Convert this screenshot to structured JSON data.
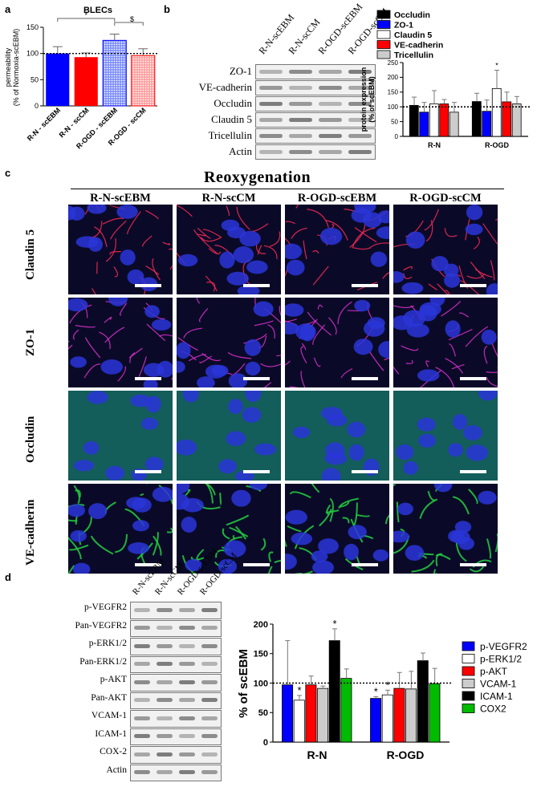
{
  "panels": {
    "a": "a",
    "b": "b",
    "c": "c",
    "d": "d"
  },
  "chart_a": {
    "type": "bar",
    "title": "BLECs",
    "ylabel_line1": "permeability",
    "ylabel_line2": "(% of Normoxia-scEBM)",
    "ylim": [
      0,
      150
    ],
    "yticks": [
      "0",
      "50",
      "100",
      "150"
    ],
    "categories": [
      "R-N - scEBM",
      "R-N - scCM",
      "R-OGD - scEBM",
      "R-OGD - scCM"
    ],
    "values": [
      100,
      93,
      125,
      96
    ],
    "errors": [
      13,
      8,
      12,
      13
    ],
    "colors": [
      "#0000ff",
      "#ff0000",
      "#0000ff",
      "#ff0000"
    ],
    "patterned": [
      false,
      false,
      true,
      true
    ],
    "reference_line": 100,
    "annotations": [
      "*",
      "$"
    ]
  },
  "blot_b": {
    "lanes": [
      "R-N-scEBM",
      "R-N-scCM",
      "R-OGD-scEBM",
      "R-OGD-scCM"
    ],
    "rows": [
      "ZO-1",
      "VE-cadherin",
      "Occludin",
      "Claudin 5",
      "Tricellulin",
      "Actin"
    ]
  },
  "chart_b": {
    "type": "bar",
    "ylabel_line1": "protein expression",
    "ylabel_line2": "(% of scEBM)",
    "ylim": [
      0,
      250
    ],
    "yticks": [
      "0",
      "50",
      "100",
      "150",
      "200",
      "250"
    ],
    "categories": [
      "R-N",
      "R-OGD"
    ],
    "series": [
      {
        "name": "Occludin",
        "color": "#000000",
        "values": [
          105,
          118
        ],
        "errors": [
          28,
          28
        ]
      },
      {
        "name": "ZO-1",
        "color": "#0000ff",
        "values": [
          82,
          85
        ],
        "errors": [
          33,
          38
        ]
      },
      {
        "name": "Claudin 5",
        "color": "#ffffff",
        "values": [
          110,
          162
        ],
        "errors": [
          45,
          62
        ]
      },
      {
        "name": "VE-cadherin",
        "color": "#ff0000",
        "values": [
          110,
          117
        ],
        "errors": [
          15,
          33
        ]
      },
      {
        "name": "Tricellulin",
        "color": "#cccccc",
        "values": [
          82,
          110
        ],
        "errors": [
          33,
          25
        ]
      }
    ],
    "reference_line": 100,
    "annotations": [
      "*"
    ]
  },
  "micro_c": {
    "heading": "Reoxygenation",
    "columns": [
      "R-N-scEBM",
      "R-N-scCM",
      "R-OGD-scEBM",
      "R-OGD-scCM"
    ],
    "rows": [
      "Claudin 5",
      "ZO-1",
      "Occludin",
      "VE-cadherin"
    ],
    "row_colors": [
      "#ff2a55",
      "#e030d0",
      "#1fa080",
      "#25d040"
    ]
  },
  "blot_d": {
    "lanes": [
      "R-N-scEBM",
      "R-N-scCM",
      "R-OGD-scEBM",
      "R-OGD-scCM"
    ],
    "rows": [
      "p-VEGFR2",
      "Pan-VEGFR2",
      "p-ERK1/2",
      "Pan-ERK1/2",
      "p-AKT",
      "Pan-AKT",
      "VCAM-1",
      "ICAM-1",
      "COX-2",
      "Actin"
    ]
  },
  "chart_d": {
    "type": "bar",
    "ylabel": "% of scEBM",
    "ylim": [
      0,
      200
    ],
    "yticks": [
      "0",
      "50",
      "100",
      "150",
      "200"
    ],
    "categories": [
      "R-N",
      "R-OGD"
    ],
    "series": [
      {
        "name": "p-VEGFR2",
        "color": "#0000ff",
        "values": [
          97,
          74
        ],
        "errors": [
          75,
          3
        ]
      },
      {
        "name": "p-ERK1/2",
        "color": "#ffffff",
        "values": [
          71,
          80
        ],
        "errors": [
          8,
          8
        ]
      },
      {
        "name": "p-AKT",
        "color": "#ff0000",
        "values": [
          97,
          91
        ],
        "errors": [
          15,
          27
        ]
      },
      {
        "name": "VCAM-1",
        "color": "#cccccc",
        "values": [
          91,
          90
        ],
        "errors": [
          4,
          30
        ]
      },
      {
        "name": "ICAM-1",
        "color": "#000000",
        "values": [
          172,
          138
        ],
        "errors": [
          20,
          13
        ]
      },
      {
        "name": "COX2",
        "color": "#00bb00",
        "values": [
          108,
          99
        ],
        "errors": [
          16,
          26
        ]
      }
    ],
    "reference_line": 100,
    "annotations": [
      "*",
      "*",
      "*",
      "*"
    ]
  }
}
